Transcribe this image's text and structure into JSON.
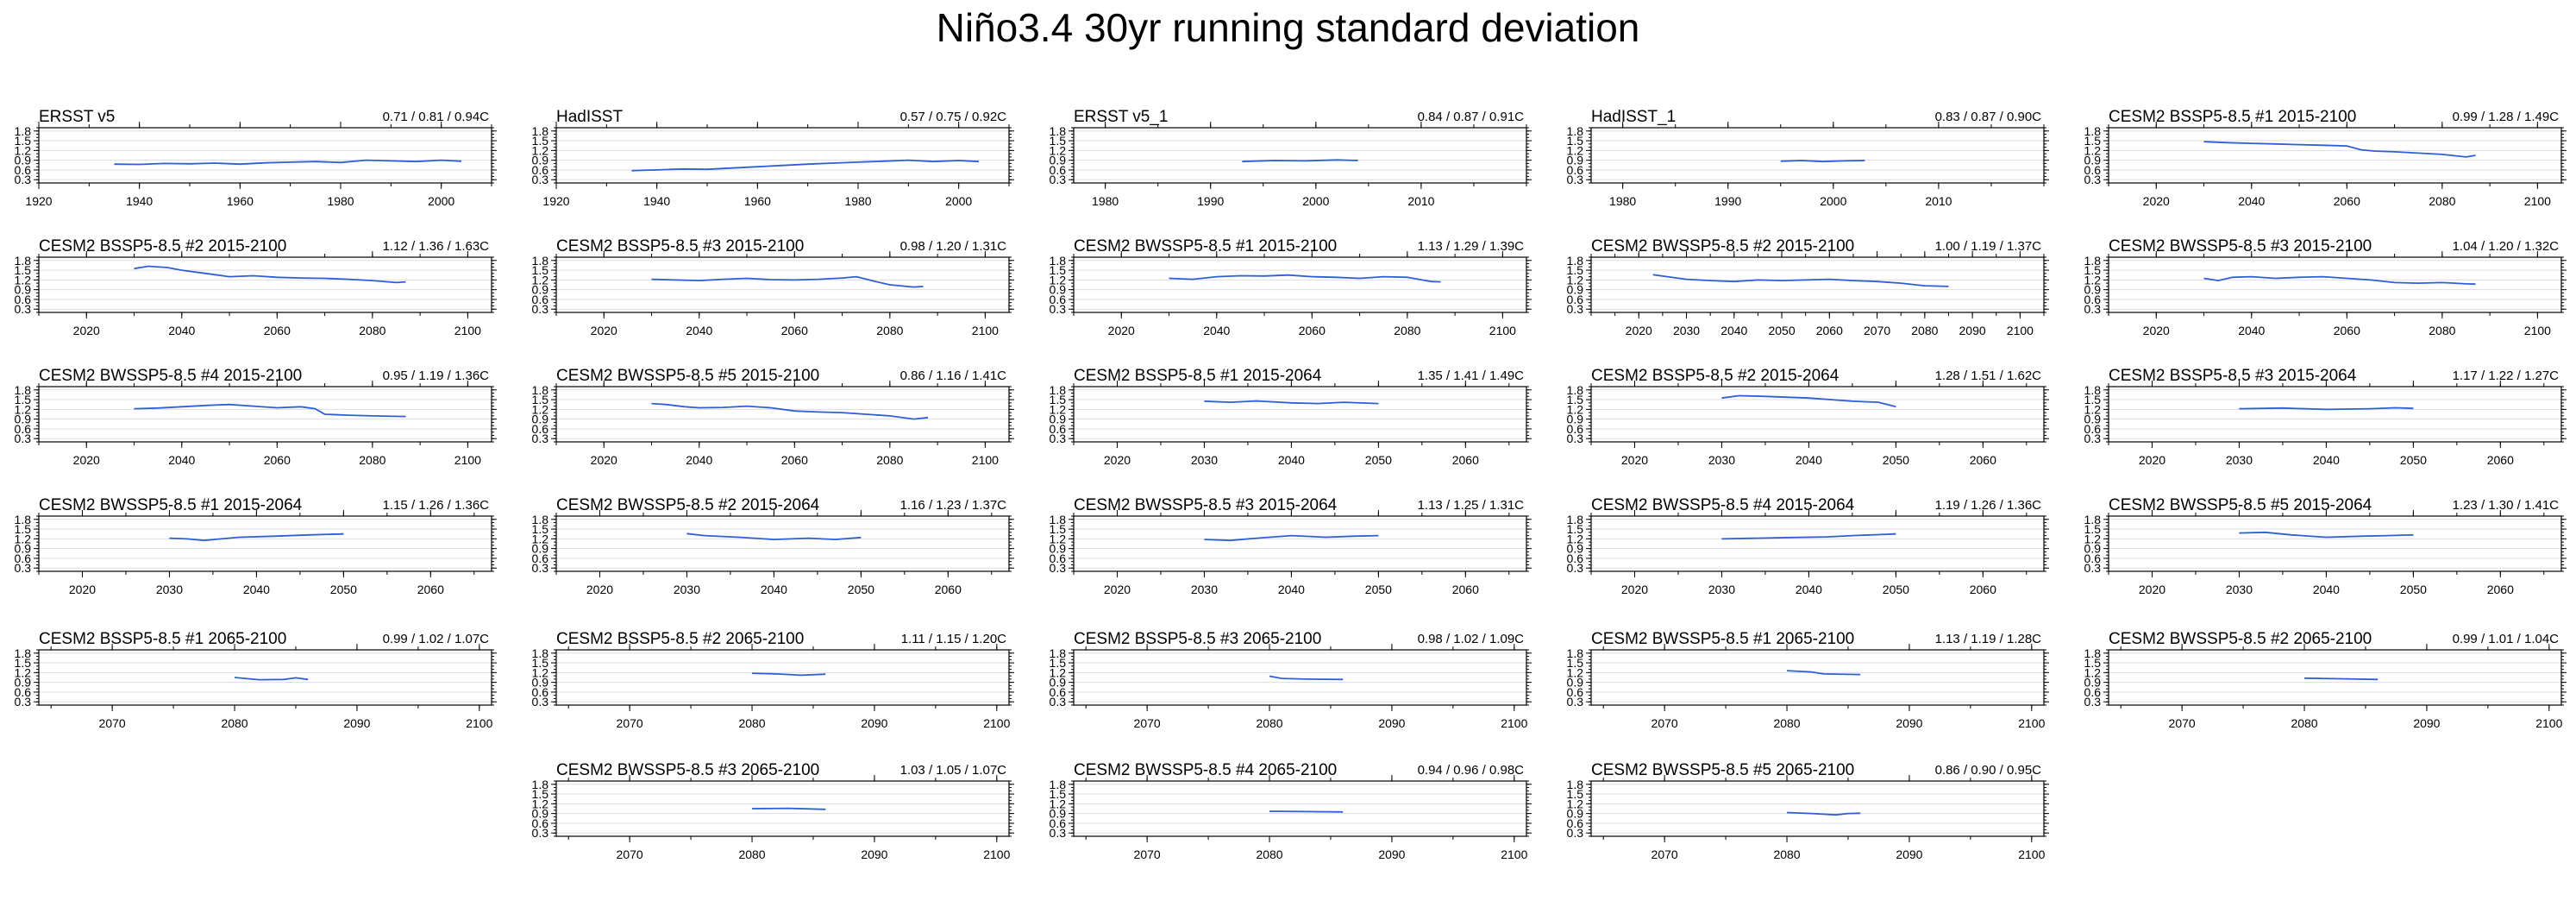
{
  "figure": {
    "title": "Niño3.4 30yr running standard deviation",
    "line_color": "#2f5fd6",
    "grid_color": "#dddddd"
  },
  "chart_data": [
    {
      "type": "line",
      "title": "ERSST v5",
      "stats": "0.71 / 0.81 / 0.94C",
      "xlim": [
        1920,
        2010
      ],
      "xticks": [
        1920,
        1940,
        1960,
        1980,
        2000
      ],
      "ylim": [
        0.2,
        1.9
      ],
      "yticks": [
        "0.3",
        "0.6",
        "0.9",
        "1.2",
        "1.5",
        "1.8"
      ],
      "x": [
        1935,
        1940,
        1945,
        1950,
        1955,
        1960,
        1965,
        1970,
        1975,
        1980,
        1985,
        1990,
        1995,
        2000,
        2004
      ],
      "y": [
        0.78,
        0.77,
        0.8,
        0.79,
        0.81,
        0.78,
        0.82,
        0.84,
        0.86,
        0.83,
        0.9,
        0.88,
        0.86,
        0.9,
        0.87
      ]
    },
    {
      "type": "line",
      "title": "HadISST",
      "stats": "0.57 / 0.75 / 0.92C",
      "xlim": [
        1920,
        2010
      ],
      "xticks": [
        1920,
        1940,
        1960,
        1980,
        2000
      ],
      "ylim": [
        0.2,
        1.9
      ],
      "yticks": [
        "0.3",
        "0.6",
        "0.9",
        "1.2",
        "1.5",
        "1.8"
      ],
      "x": [
        1935,
        1940,
        1945,
        1950,
        1955,
        1960,
        1965,
        1970,
        1975,
        1980,
        1985,
        1990,
        1995,
        2000,
        2004
      ],
      "y": [
        0.58,
        0.6,
        0.63,
        0.62,
        0.66,
        0.7,
        0.74,
        0.78,
        0.81,
        0.84,
        0.87,
        0.9,
        0.86,
        0.89,
        0.86
      ]
    },
    {
      "type": "line",
      "title": "ERSST v5_1",
      "stats": "0.84 / 0.87 / 0.91C",
      "xlim": [
        1977,
        2020
      ],
      "xticks": [
        1980,
        1990,
        2000,
        2010
      ],
      "ylim": [
        0.2,
        1.9
      ],
      "yticks": [
        "0.3",
        "0.6",
        "0.9",
        "1.2",
        "1.5",
        "1.8"
      ],
      "x": [
        1993,
        1996,
        1999,
        2002,
        2004
      ],
      "y": [
        0.86,
        0.89,
        0.88,
        0.91,
        0.89
      ]
    },
    {
      "type": "line",
      "title": "HadISST_1",
      "stats": "0.83 / 0.87 / 0.90C",
      "xlim": [
        1977,
        2020
      ],
      "xticks": [
        1980,
        1990,
        2000,
        2010
      ],
      "ylim": [
        0.2,
        1.9
      ],
      "yticks": [
        "0.3",
        "0.6",
        "0.9",
        "1.2",
        "1.5",
        "1.8"
      ],
      "x": [
        1995,
        1997,
        1999,
        2001,
        2003
      ],
      "y": [
        0.87,
        0.89,
        0.86,
        0.88,
        0.89
      ]
    },
    {
      "type": "line",
      "title": "CESM2 BSSP5-8.5 #1 2015-2100",
      "stats": "0.99 / 1.28 / 1.49C",
      "xlim": [
        2010,
        2105
      ],
      "xticks": [
        2020,
        2040,
        2060,
        2080,
        2100
      ],
      "ylim": [
        0.2,
        1.9
      ],
      "yticks": [
        "0.3",
        "0.6",
        "0.9",
        "1.2",
        "1.5",
        "1.8"
      ],
      "x": [
        2030,
        2035,
        2040,
        2045,
        2050,
        2055,
        2060,
        2063,
        2066,
        2070,
        2075,
        2080,
        2085,
        2087
      ],
      "y": [
        1.47,
        1.44,
        1.42,
        1.4,
        1.38,
        1.36,
        1.34,
        1.22,
        1.18,
        1.16,
        1.12,
        1.08,
        1.0,
        1.05
      ]
    },
    {
      "type": "line",
      "title": "CESM2 BSSP5-8.5 #2 2015-2100",
      "stats": "1.12 / 1.36 / 1.63C",
      "xlim": [
        2010,
        2105
      ],
      "xticks": [
        2020,
        2040,
        2060,
        2080,
        2100
      ],
      "ylim": [
        0.2,
        1.9
      ],
      "yticks": [
        "0.3",
        "0.6",
        "0.9",
        "1.2",
        "1.5",
        "1.8"
      ],
      "x": [
        2030,
        2033,
        2037,
        2040,
        2045,
        2050,
        2055,
        2060,
        2065,
        2070,
        2075,
        2080,
        2085,
        2087
      ],
      "y": [
        1.55,
        1.62,
        1.58,
        1.5,
        1.4,
        1.3,
        1.33,
        1.28,
        1.26,
        1.25,
        1.22,
        1.18,
        1.12,
        1.14
      ]
    },
    {
      "type": "line",
      "title": "CESM2 BSSP5-8.5 #3 2015-2100",
      "stats": "0.98 / 1.20 / 1.31C",
      "xlim": [
        2010,
        2105
      ],
      "xticks": [
        2020,
        2040,
        2060,
        2080,
        2100
      ],
      "ylim": [
        0.2,
        1.9
      ],
      "yticks": [
        "0.3",
        "0.6",
        "0.9",
        "1.2",
        "1.5",
        "1.8"
      ],
      "x": [
        2030,
        2035,
        2040,
        2045,
        2050,
        2055,
        2060,
        2065,
        2070,
        2073,
        2077,
        2080,
        2085,
        2087
      ],
      "y": [
        1.22,
        1.2,
        1.18,
        1.22,
        1.25,
        1.21,
        1.2,
        1.22,
        1.26,
        1.3,
        1.15,
        1.05,
        0.98,
        1.0
      ]
    },
    {
      "type": "line",
      "title": "CESM2 BWSSP5-8.5 #1 2015-2100",
      "stats": "1.13 / 1.29 / 1.39C",
      "xlim": [
        2010,
        2105
      ],
      "xticks": [
        2020,
        2040,
        2060,
        2080,
        2100
      ],
      "ylim": [
        0.2,
        1.9
      ],
      "yticks": [
        "0.3",
        "0.6",
        "0.9",
        "1.2",
        "1.5",
        "1.8"
      ],
      "x": [
        2030,
        2035,
        2040,
        2045,
        2050,
        2055,
        2060,
        2065,
        2070,
        2075,
        2080,
        2085,
        2087
      ],
      "y": [
        1.25,
        1.22,
        1.3,
        1.33,
        1.32,
        1.35,
        1.3,
        1.28,
        1.25,
        1.3,
        1.28,
        1.15,
        1.14
      ]
    },
    {
      "type": "line",
      "title": "CESM2 BWSSP5-8.5 #2 2015-2100",
      "stats": "1.00 / 1.19 / 1.37C",
      "xlim": [
        2010,
        2105
      ],
      "xticks": [
        2020,
        2030,
        2040,
        2050,
        2060,
        2070,
        2080,
        2090,
        2100
      ],
      "ylim": [
        0.2,
        1.9
      ],
      "yticks": [
        "0.3",
        "0.6",
        "0.9",
        "1.2",
        "1.5",
        "1.8"
      ],
      "x": [
        2023,
        2026,
        2030,
        2035,
        2040,
        2045,
        2050,
        2055,
        2060,
        2065,
        2070,
        2075,
        2080,
        2085
      ],
      "y": [
        1.36,
        1.3,
        1.22,
        1.18,
        1.15,
        1.2,
        1.18,
        1.2,
        1.22,
        1.18,
        1.15,
        1.1,
        1.02,
        1.0
      ]
    },
    {
      "type": "line",
      "title": "CESM2 BWSSP5-8.5 #3 2015-2100",
      "stats": "1.04 / 1.20 / 1.32C",
      "xlim": [
        2010,
        2105
      ],
      "xticks": [
        2020,
        2040,
        2060,
        2080,
        2100
      ],
      "ylim": [
        0.2,
        1.9
      ],
      "yticks": [
        "0.3",
        "0.6",
        "0.9",
        "1.2",
        "1.5",
        "1.8"
      ],
      "x": [
        2030,
        2033,
        2036,
        2040,
        2045,
        2050,
        2055,
        2060,
        2065,
        2070,
        2075,
        2080,
        2085,
        2087
      ],
      "y": [
        1.25,
        1.18,
        1.28,
        1.3,
        1.25,
        1.28,
        1.3,
        1.25,
        1.2,
        1.12,
        1.1,
        1.12,
        1.08,
        1.07
      ]
    },
    {
      "type": "line",
      "title": "CESM2 BWSSP5-8.5 #4 2015-2100",
      "stats": "0.95 / 1.19 / 1.36C",
      "xlim": [
        2010,
        2105
      ],
      "xticks": [
        2020,
        2040,
        2060,
        2080,
        2100
      ],
      "ylim": [
        0.2,
        1.9
      ],
      "yticks": [
        "0.3",
        "0.6",
        "0.9",
        "1.2",
        "1.5",
        "1.8"
      ],
      "x": [
        2030,
        2035,
        2040,
        2045,
        2050,
        2055,
        2060,
        2065,
        2068,
        2070,
        2075,
        2080,
        2087
      ],
      "y": [
        1.22,
        1.24,
        1.28,
        1.32,
        1.35,
        1.3,
        1.25,
        1.28,
        1.22,
        1.05,
        1.02,
        1.0,
        0.98
      ]
    },
    {
      "type": "line",
      "title": "CESM2 BWSSP5-8.5 #5 2015-2100",
      "stats": "0.86 / 1.16 / 1.41C",
      "xlim": [
        2010,
        2105
      ],
      "xticks": [
        2020,
        2040,
        2060,
        2080,
        2100
      ],
      "ylim": [
        0.2,
        1.9
      ],
      "yticks": [
        "0.3",
        "0.6",
        "0.9",
        "1.2",
        "1.5",
        "1.8"
      ],
      "x": [
        2030,
        2033,
        2037,
        2040,
        2045,
        2050,
        2055,
        2060,
        2065,
        2070,
        2075,
        2080,
        2085,
        2088
      ],
      "y": [
        1.38,
        1.35,
        1.28,
        1.25,
        1.26,
        1.3,
        1.25,
        1.15,
        1.12,
        1.1,
        1.05,
        1.0,
        0.9,
        0.95
      ]
    },
    {
      "type": "line",
      "title": "CESM2 BSSP5-8.5 #1 2015-2064",
      "stats": "1.35 / 1.41 / 1.49C",
      "xlim": [
        2015,
        2067
      ],
      "xticks": [
        2020,
        2030,
        2040,
        2050,
        2060
      ],
      "ylim": [
        0.2,
        1.9
      ],
      "yticks": [
        "0.3",
        "0.6",
        "0.9",
        "1.2",
        "1.5",
        "1.8"
      ],
      "x": [
        2030,
        2033,
        2036,
        2040,
        2043,
        2046,
        2050
      ],
      "y": [
        1.45,
        1.42,
        1.46,
        1.4,
        1.38,
        1.42,
        1.38
      ]
    },
    {
      "type": "line",
      "title": "CESM2 BSSP5-8.5 #2 2015-2064",
      "stats": "1.28 / 1.51 / 1.62C",
      "xlim": [
        2015,
        2067
      ],
      "xticks": [
        2020,
        2030,
        2040,
        2050,
        2060
      ],
      "ylim": [
        0.2,
        1.9
      ],
      "yticks": [
        "0.3",
        "0.6",
        "0.9",
        "1.2",
        "1.5",
        "1.8"
      ],
      "x": [
        2030,
        2032,
        2035,
        2040,
        2045,
        2048,
        2050
      ],
      "y": [
        1.55,
        1.62,
        1.6,
        1.55,
        1.45,
        1.42,
        1.28
      ]
    },
    {
      "type": "line",
      "title": "CESM2 BSSP5-8.5 #3 2015-2064",
      "stats": "1.17 / 1.22 / 1.27C",
      "xlim": [
        2015,
        2067
      ],
      "xticks": [
        2020,
        2030,
        2040,
        2050,
        2060
      ],
      "ylim": [
        0.2,
        1.9
      ],
      "yticks": [
        "0.3",
        "0.6",
        "0.9",
        "1.2",
        "1.5",
        "1.8"
      ],
      "x": [
        2030,
        2035,
        2040,
        2045,
        2048,
        2050
      ],
      "y": [
        1.22,
        1.24,
        1.2,
        1.22,
        1.25,
        1.23
      ]
    },
    {
      "type": "line",
      "title": "CESM2 BWSSP5-8.5 #1 2015-2064",
      "stats": "1.15 / 1.26 / 1.36C",
      "xlim": [
        2015,
        2067
      ],
      "xticks": [
        2020,
        2030,
        2040,
        2050,
        2060
      ],
      "ylim": [
        0.2,
        1.9
      ],
      "yticks": [
        "0.3",
        "0.6",
        "0.9",
        "1.2",
        "1.5",
        "1.8"
      ],
      "x": [
        2030,
        2032,
        2034,
        2038,
        2042,
        2046,
        2050
      ],
      "y": [
        1.22,
        1.2,
        1.15,
        1.25,
        1.28,
        1.32,
        1.35
      ]
    },
    {
      "type": "line",
      "title": "CESM2 BWSSP5-8.5 #2 2015-2064",
      "stats": "1.16 / 1.23 / 1.37C",
      "xlim": [
        2015,
        2067
      ],
      "xticks": [
        2020,
        2030,
        2040,
        2050,
        2060
      ],
      "ylim": [
        0.2,
        1.9
      ],
      "yticks": [
        "0.3",
        "0.6",
        "0.9",
        "1.2",
        "1.5",
        "1.8"
      ],
      "x": [
        2030,
        2032,
        2036,
        2040,
        2044,
        2047,
        2050
      ],
      "y": [
        1.36,
        1.3,
        1.25,
        1.18,
        1.22,
        1.18,
        1.24
      ]
    },
    {
      "type": "line",
      "title": "CESM2 BWSSP5-8.5 #3 2015-2064",
      "stats": "1.13 / 1.25 / 1.31C",
      "xlim": [
        2015,
        2067
      ],
      "xticks": [
        2020,
        2030,
        2040,
        2050,
        2060
      ],
      "ylim": [
        0.2,
        1.9
      ],
      "yticks": [
        "0.3",
        "0.6",
        "0.9",
        "1.2",
        "1.5",
        "1.8"
      ],
      "x": [
        2030,
        2033,
        2036,
        2040,
        2044,
        2047,
        2050
      ],
      "y": [
        1.18,
        1.15,
        1.22,
        1.3,
        1.25,
        1.28,
        1.3
      ]
    },
    {
      "type": "line",
      "title": "CESM2 BWSSP5-8.5 #4 2015-2064",
      "stats": "1.19 / 1.26 / 1.36C",
      "xlim": [
        2015,
        2067
      ],
      "xticks": [
        2020,
        2030,
        2040,
        2050,
        2060
      ],
      "ylim": [
        0.2,
        1.9
      ],
      "yticks": [
        "0.3",
        "0.6",
        "0.9",
        "1.2",
        "1.5",
        "1.8"
      ],
      "x": [
        2030,
        2034,
        2038,
        2042,
        2045,
        2048,
        2050
      ],
      "y": [
        1.2,
        1.22,
        1.24,
        1.26,
        1.3,
        1.33,
        1.35
      ]
    },
    {
      "type": "line",
      "title": "CESM2 BWSSP5-8.5 #5 2015-2064",
      "stats": "1.23 / 1.30 / 1.41C",
      "xlim": [
        2015,
        2067
      ],
      "xticks": [
        2020,
        2030,
        2040,
        2050,
        2060
      ],
      "ylim": [
        0.2,
        1.9
      ],
      "yticks": [
        "0.3",
        "0.6",
        "0.9",
        "1.2",
        "1.5",
        "1.8"
      ],
      "x": [
        2030,
        2033,
        2036,
        2040,
        2044,
        2047,
        2050
      ],
      "y": [
        1.38,
        1.4,
        1.32,
        1.25,
        1.28,
        1.3,
        1.32
      ]
    },
    {
      "type": "line",
      "title": "CESM2 BSSP5-8.5 #1 2065-2100",
      "stats": "0.99 / 1.02 / 1.07C",
      "xlim": [
        2064,
        2101
      ],
      "xticks": [
        2070,
        2080,
        2090,
        2100
      ],
      "ylim": [
        0.2,
        1.9
      ],
      "yticks": [
        "0.3",
        "0.6",
        "0.9",
        "1.2",
        "1.5",
        "1.8"
      ],
      "x": [
        2080,
        2082,
        2084,
        2085,
        2086
      ],
      "y": [
        1.05,
        0.98,
        0.99,
        1.04,
        0.99
      ]
    },
    {
      "type": "line",
      "title": "CESM2 BSSP5-8.5 #2 2065-2100",
      "stats": "1.11 / 1.15 / 1.20C",
      "xlim": [
        2064,
        2101
      ],
      "xticks": [
        2070,
        2080,
        2090,
        2100
      ],
      "ylim": [
        0.2,
        1.9
      ],
      "yticks": [
        "0.3",
        "0.6",
        "0.9",
        "1.2",
        "1.5",
        "1.8"
      ],
      "x": [
        2080,
        2082,
        2084,
        2086
      ],
      "y": [
        1.18,
        1.16,
        1.12,
        1.15
      ]
    },
    {
      "type": "line",
      "title": "CESM2 BSSP5-8.5 #3 2065-2100",
      "stats": "0.98 / 1.02 / 1.09C",
      "xlim": [
        2064,
        2101
      ],
      "xticks": [
        2070,
        2080,
        2090,
        2100
      ],
      "ylim": [
        0.2,
        1.9
      ],
      "yticks": [
        "0.3",
        "0.6",
        "0.9",
        "1.2",
        "1.5",
        "1.8"
      ],
      "x": [
        2080,
        2081,
        2083,
        2086
      ],
      "y": [
        1.09,
        1.02,
        1.0,
        0.99
      ]
    },
    {
      "type": "line",
      "title": "CESM2 BWSSP5-8.5 #1 2065-2100",
      "stats": "1.13 / 1.19 / 1.28C",
      "xlim": [
        2064,
        2101
      ],
      "xticks": [
        2070,
        2080,
        2090,
        2100
      ],
      "ylim": [
        0.2,
        1.9
      ],
      "yticks": [
        "0.3",
        "0.6",
        "0.9",
        "1.2",
        "1.5",
        "1.8"
      ],
      "x": [
        2080,
        2082,
        2083,
        2086
      ],
      "y": [
        1.26,
        1.22,
        1.16,
        1.14
      ]
    },
    {
      "type": "line",
      "title": "CESM2 BWSSP5-8.5 #2 2065-2100",
      "stats": "0.99 / 1.01 / 1.04C",
      "xlim": [
        2064,
        2101
      ],
      "xticks": [
        2070,
        2080,
        2090,
        2100
      ],
      "ylim": [
        0.2,
        1.9
      ],
      "yticks": [
        "0.3",
        "0.6",
        "0.9",
        "1.2",
        "1.5",
        "1.8"
      ],
      "x": [
        2080,
        2083,
        2086
      ],
      "y": [
        1.03,
        1.01,
        0.99
      ]
    },
    {
      "type": "line",
      "title": "CESM2 BWSSP5-8.5 #3 2065-2100",
      "stats": "1.03 / 1.05 / 1.07C",
      "xlim": [
        2064,
        2101
      ],
      "xticks": [
        2070,
        2080,
        2090,
        2100
      ],
      "ylim": [
        0.2,
        1.9
      ],
      "yticks": [
        "0.3",
        "0.6",
        "0.9",
        "1.2",
        "1.5",
        "1.8"
      ],
      "x": [
        2080,
        2083,
        2086
      ],
      "y": [
        1.05,
        1.06,
        1.03
      ]
    },
    {
      "type": "line",
      "title": "CESM2 BWSSP5-8.5 #4 2065-2100",
      "stats": "0.94 / 0.96 / 0.98C",
      "xlim": [
        2064,
        2101
      ],
      "xticks": [
        2070,
        2080,
        2090,
        2100
      ],
      "ylim": [
        0.2,
        1.9
      ],
      "yticks": [
        "0.3",
        "0.6",
        "0.9",
        "1.2",
        "1.5",
        "1.8"
      ],
      "x": [
        2080,
        2083,
        2086
      ],
      "y": [
        0.97,
        0.96,
        0.95
      ]
    },
    {
      "type": "line",
      "title": "CESM2 BWSSP5-8.5 #5 2065-2100",
      "stats": "0.86 / 0.90 / 0.95C",
      "xlim": [
        2064,
        2101
      ],
      "xticks": [
        2070,
        2080,
        2090,
        2100
      ],
      "ylim": [
        0.2,
        1.9
      ],
      "yticks": [
        "0.3",
        "0.6",
        "0.9",
        "1.2",
        "1.5",
        "1.8"
      ],
      "x": [
        2080,
        2082,
        2084,
        2085,
        2086
      ],
      "y": [
        0.93,
        0.9,
        0.86,
        0.9,
        0.91
      ]
    }
  ]
}
